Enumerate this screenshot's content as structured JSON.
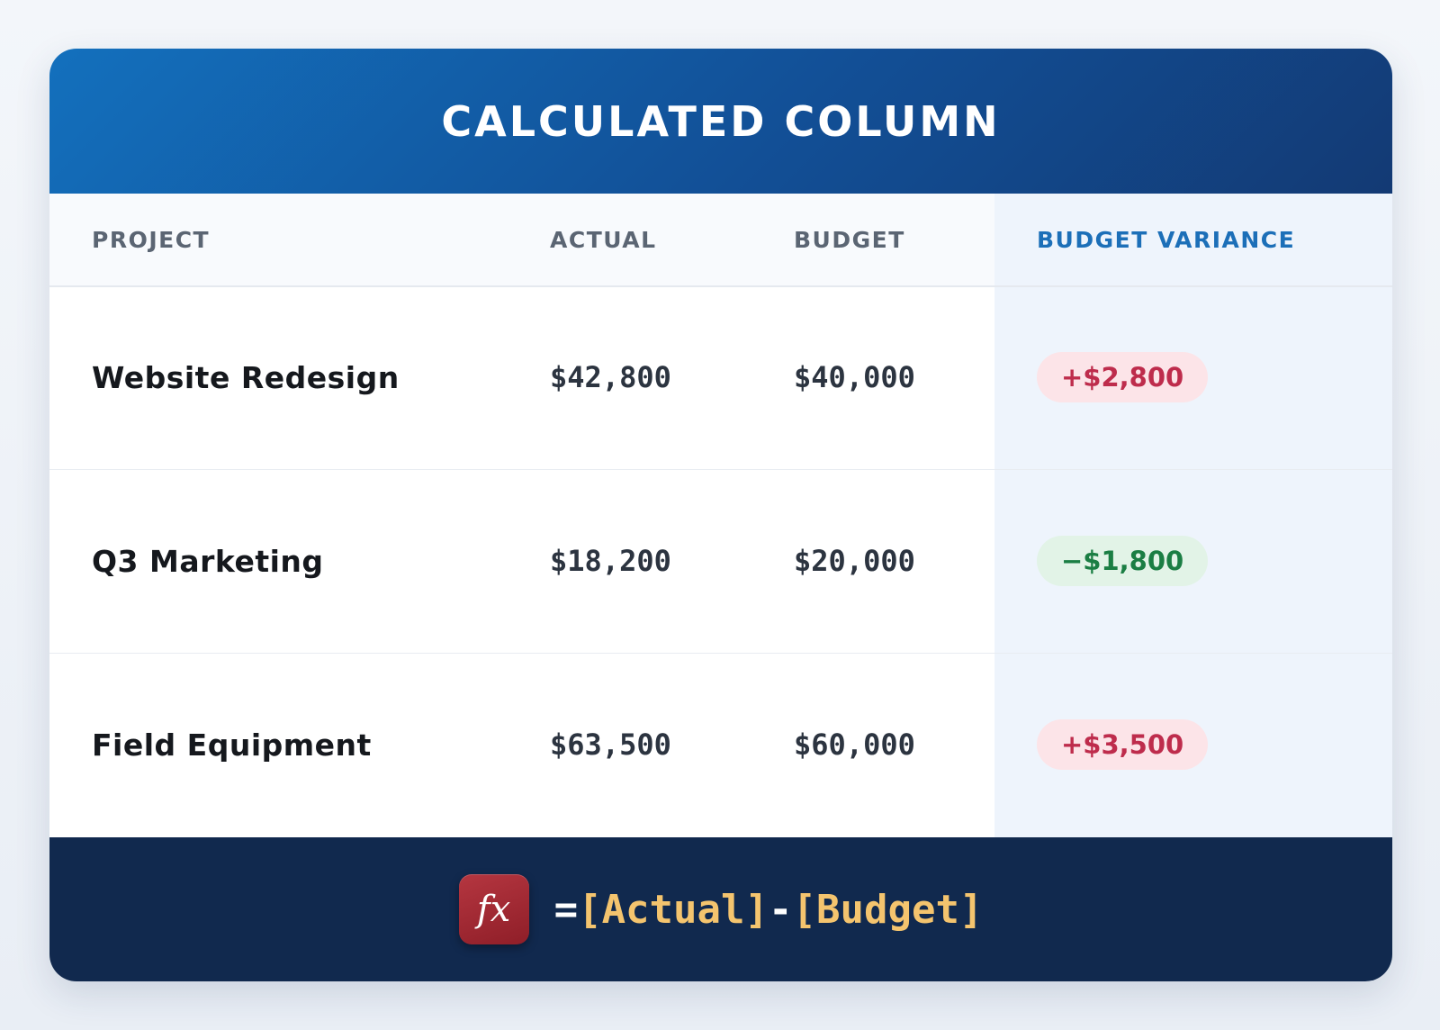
{
  "title": "CALCULATED COLUMN",
  "columns": {
    "project": "PROJECT",
    "actual": "ACTUAL",
    "budget": "BUDGET",
    "variance": "BUDGET VARIANCE"
  },
  "rows": [
    {
      "project": "Website Redesign",
      "actual": "$42,800",
      "budget": "$40,000",
      "variance": "+$2,800",
      "status": "over"
    },
    {
      "project": "Q3 Marketing",
      "actual": "$18,200",
      "budget": "$20,000",
      "variance": "−$1,800",
      "status": "under"
    },
    {
      "project": "Field Equipment",
      "actual": "$63,500",
      "budget": "$60,000",
      "variance": "+$3,500",
      "status": "over"
    }
  ],
  "formula": {
    "icon": "fx-icon",
    "icon_label": "fx",
    "equals": "=",
    "operand1": "[Actual]",
    "operator": "-",
    "operand2": "[Budget]"
  },
  "colors": {
    "header_gradient": [
      "#1370bd",
      "#133a74"
    ],
    "accent": "#1c6fb8",
    "over_budget": "#be2c4c",
    "under_budget": "#1b7e44",
    "formula_bar": "#11294e",
    "formula_reference": "#f4c46e"
  }
}
